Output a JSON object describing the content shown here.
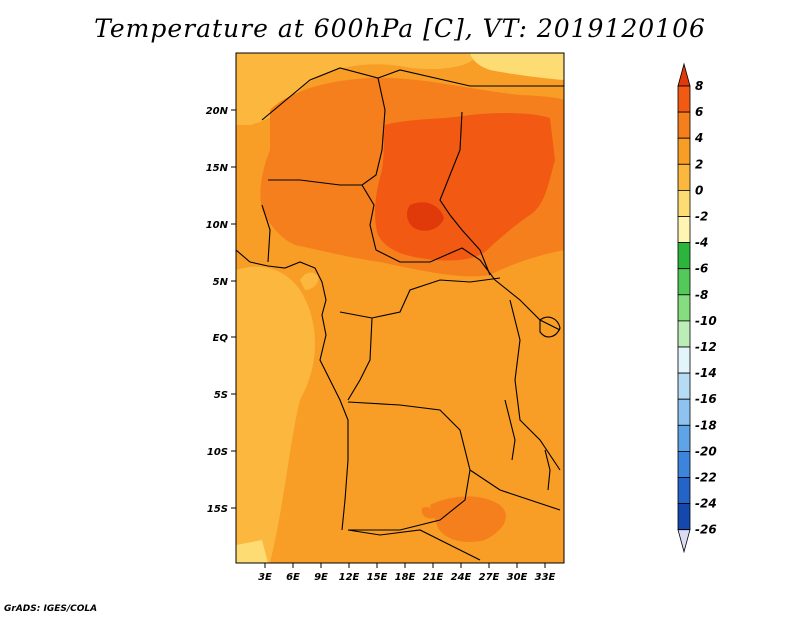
{
  "title": "Temperature at 600hPa [C], VT: 2019120106",
  "credit": "GrADS: IGES/COLA",
  "map": {
    "lon_range": [
      0,
      35
    ],
    "lat_range": [
      -20,
      25
    ],
    "y_axis_labels": [
      "20N",
      "15N",
      "10N",
      "5N",
      "EQ",
      "5S",
      "10S",
      "15S"
    ],
    "x_axis_labels": [
      "3E",
      "6E",
      "9E",
      "12E",
      "15E",
      "18E",
      "21E",
      "24E",
      "27E",
      "30E",
      "33E"
    ]
  },
  "colorbar": {
    "labels": [
      "8",
      "6",
      "4",
      "2",
      "0",
      "-2",
      "-4",
      "-6",
      "-8",
      "-10",
      "-12",
      "-14",
      "-16",
      "-18",
      "-20",
      "-22",
      "-24",
      "-26"
    ],
    "colors": [
      "#e03a0a",
      "#f25a14",
      "#f57f1c",
      "#f89d25",
      "#fbb73e",
      "#fddc73",
      "#fff4b2",
      "#2db43c",
      "#53c95a",
      "#85dd7f",
      "#bcedb7",
      "#e2f5fb",
      "#b6dcf5",
      "#8ec3ef",
      "#5ea4e7",
      "#3d84dd",
      "#2463c8",
      "#1548ac",
      "#0b2e86",
      "#061a5e"
    ]
  }
}
